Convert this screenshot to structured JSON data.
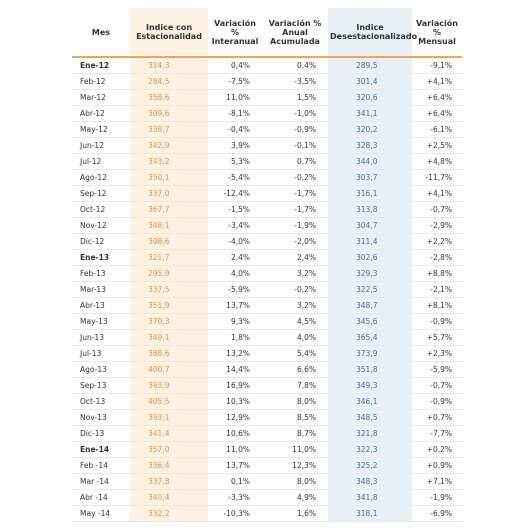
{
  "table": {
    "header": [
      "Mes",
      "Indice con Estacionalidad",
      "Variación % Interanual",
      "Variación % Anual Acumulada",
      "Indice Desestacionalizado",
      "Variación % Mensual"
    ],
    "rows": [
      [
        "Ene-12",
        "314,3",
        "0,4%",
        "0,4%",
        "289,5",
        "-9,1%"
      ],
      [
        "Feb-12",
        "284,5",
        "-7,5%",
        "-3,5%",
        "301,4",
        "+4,1%"
      ],
      [
        "Mar-12",
        "358,6",
        "11,0%",
        "1,5%",
        "320,6",
        "+6,4%"
      ],
      [
        "Abr-12",
        "309,6",
        "-8,1%",
        "-1,0%",
        "341,1",
        "+6,4%"
      ],
      [
        "May-12",
        "338,7",
        "-0,4%",
        "-0,9%",
        "320,2",
        "-6,1%"
      ],
      [
        "Jun-12",
        "342,9",
        "3,9%",
        "-0,1%",
        "328,3",
        "+2,5%"
      ],
      [
        "Jul-12",
        "343,2",
        "5,3%",
        "0,7%",
        "344,0",
        "+4,8%"
      ],
      [
        "Ago-12",
        "350,1",
        "-5,4%",
        "-0,2%",
        "303,7",
        "-11,7%"
      ],
      [
        "Sep-12",
        "337,0",
        "-12,4%",
        "-1,7%",
        "316,1",
        "+4,1%"
      ],
      [
        "Oct-12",
        "367,7",
        "-1,5%",
        "-1,7%",
        "313,8",
        "-0,7%"
      ],
      [
        "Nov-12",
        "348,1",
        "-3,4%",
        "-1,9%",
        "304,7",
        "-2,9%"
      ],
      [
        "Dic-12",
        "308,6",
        "-4,0%",
        "-2,0%",
        "311,4",
        "+2,2%"
      ],
      [
        "Ene-13",
        "321,7",
        "2,4%",
        "2,4%",
        "302,6",
        "-2,8%"
      ],
      [
        "Feb-13",
        "295,9",
        "4,0%",
        "3,2%",
        "329,3",
        "+8,8%"
      ],
      [
        "Mar-13",
        "337,5",
        "-5,9%",
        "-0,2%",
        "322,5",
        "-2,1%"
      ],
      [
        "Abr-13",
        "351,9",
        "13,7%",
        "3,2%",
        "348,7",
        "+8,1%"
      ],
      [
        "May-13",
        "370,3",
        "9,3%",
        "4,5%",
        "345,6",
        "-0,9%"
      ],
      [
        "Jun-13",
        "349,1",
        "1,8%",
        "4,0%",
        "365,4",
        "+5,7%"
      ],
      [
        "Jul-13",
        "388,6",
        "13,2%",
        "5,4%",
        "373,9",
        "+2,3%"
      ],
      [
        "Ago-13",
        "400,7",
        "14,4%",
        "6,6%",
        "351,8",
        "-5,9%"
      ],
      [
        "Sep-13",
        "393,9",
        "16,9%",
        "7,8%",
        "349,3",
        "-0,7%"
      ],
      [
        "Oct-13",
        "405,5",
        "10,3%",
        "8,0%",
        "346,1",
        "-0,9%"
      ],
      [
        "Nov-13",
        "393,1",
        "12,9%",
        "8,5%",
        "348,5",
        "+0,7%"
      ],
      [
        "Dic-13",
        "341,4",
        "10,6%",
        "8,7%",
        "321,8",
        "-7,7%"
      ],
      [
        "Ene-14",
        "357,0",
        "11,0%",
        "11,0%",
        "322,3",
        "+0,2%"
      ],
      [
        "Feb -14",
        "336,4",
        "13,7%",
        "12,3%",
        "325,2",
        "+0,9%"
      ],
      [
        "Mar -14",
        "337,8",
        "0,1%",
        "8,0%",
        "348,3",
        "+7,1%"
      ],
      [
        "Abr -14",
        "340,4",
        "-3,3%",
        "4,9%",
        "341,8",
        "-1,9%"
      ],
      [
        "May -14",
        "332,2",
        "-10,3%",
        "1,6%",
        "318,1",
        "-6,9%"
      ]
    ]
  }
}
